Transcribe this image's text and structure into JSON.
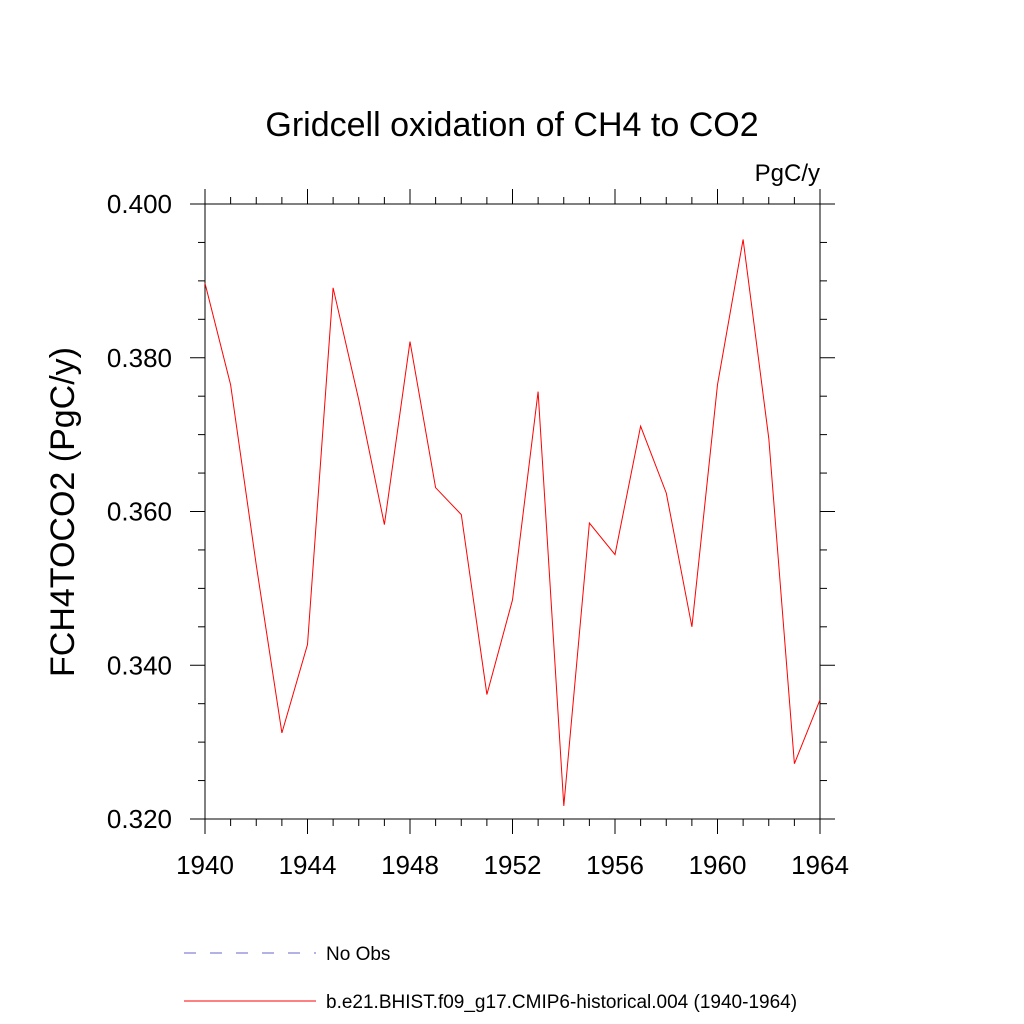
{
  "chart_data": {
    "type": "line",
    "title": "Gridcell oxidation of CH4 to CO2",
    "units": "PgC/y",
    "ylabel": "FCH4TOCO2  (PgC/y)",
    "xlabel": "",
    "xlim": [
      1940,
      1964
    ],
    "ylim": [
      0.32,
      0.4
    ],
    "x_ticks": [
      1940,
      1944,
      1948,
      1952,
      1956,
      1960,
      1964
    ],
    "x_tick_labels": [
      "1940",
      "1944",
      "1948",
      "1952",
      "1956",
      "1960",
      "1964"
    ],
    "y_ticks": [
      0.32,
      0.34,
      0.36,
      0.38,
      0.4
    ],
    "y_tick_labels": [
      "0.320",
      "0.340",
      "0.360",
      "0.380",
      "0.400"
    ],
    "grid": false,
    "legend_position": "bottom",
    "series": [
      {
        "name": "b.e21.BHIST.f09_g17.CMIP6-historical.004 (1940-1964)",
        "color": "#ff0000",
        "style": "solid",
        "x": [
          1940,
          1941,
          1942,
          1943,
          1944,
          1945,
          1946,
          1947,
          1948,
          1949,
          1950,
          1951,
          1952,
          1953,
          1954,
          1955,
          1956,
          1957,
          1958,
          1959,
          1960,
          1961,
          1962,
          1963,
          1964
        ],
        "y": [
          0.3897,
          0.3765,
          0.353,
          0.3312,
          0.3427,
          0.3891,
          0.3745,
          0.3583,
          0.3821,
          0.3631,
          0.3596,
          0.3362,
          0.3485,
          0.3756,
          0.3217,
          0.3585,
          0.3544,
          0.3711,
          0.3624,
          0.345,
          0.3765,
          0.3954,
          0.3695,
          0.3272,
          0.3355
        ]
      }
    ],
    "legend": [
      {
        "label": "No Obs",
        "color": "#6666cc",
        "style": "dashed"
      },
      {
        "label": "b.e21.BHIST.f09_g17.CMIP6-historical.004 (1940-1964)",
        "color": "#ff0000",
        "style": "solid"
      }
    ]
  }
}
